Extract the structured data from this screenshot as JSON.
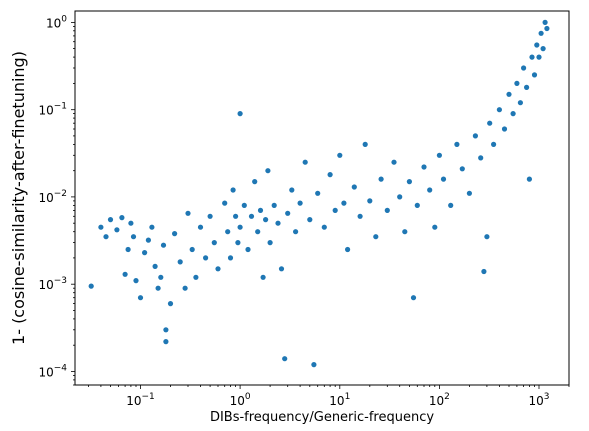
{
  "chart_data": {
    "type": "scatter",
    "title": "",
    "xlabel": "DIBs-frequency/Generic-frequency",
    "ylabel": "1- (cosine-similarity-after-finetuning)",
    "x_scale": "log",
    "y_scale": "log",
    "xlim": [
      0.022,
      2000
    ],
    "ylim": [
      7e-05,
      1.35
    ],
    "grid": false,
    "legend": "none",
    "marker_color": "#1f77b4",
    "x_ticks": [
      {
        "value": 0.1,
        "label": "10",
        "exp": "−1"
      },
      {
        "value": 1,
        "label": "10",
        "exp": "0"
      },
      {
        "value": 10,
        "label": "10",
        "exp": "1"
      },
      {
        "value": 100,
        "label": "10",
        "exp": "2"
      },
      {
        "value": 1000,
        "label": "10",
        "exp": "3"
      }
    ],
    "y_ticks": [
      {
        "value": 0.0001,
        "label": "10",
        "exp": "−4"
      },
      {
        "value": 0.001,
        "label": "10",
        "exp": "−3"
      },
      {
        "value": 0.01,
        "label": "10",
        "exp": "−2"
      },
      {
        "value": 0.1,
        "label": "10",
        "exp": "−1"
      },
      {
        "value": 1,
        "label": "10",
        "exp": "0"
      }
    ],
    "series": [
      {
        "values": [
          [
            0.032,
            0.00095
          ],
          [
            0.04,
            0.0045
          ],
          [
            0.045,
            0.0035
          ],
          [
            0.05,
            0.0055
          ],
          [
            0.058,
            0.0042
          ],
          [
            0.065,
            0.0058
          ],
          [
            0.07,
            0.0013
          ],
          [
            0.075,
            0.0025
          ],
          [
            0.08,
            0.005
          ],
          [
            0.085,
            0.0035
          ],
          [
            0.09,
            0.0011
          ],
          [
            0.1,
            0.0007
          ],
          [
            0.11,
            0.0023
          ],
          [
            0.12,
            0.0032
          ],
          [
            0.13,
            0.0045
          ],
          [
            0.14,
            0.0016
          ],
          [
            0.15,
            0.0009
          ],
          [
            0.16,
            0.0012
          ],
          [
            0.17,
            0.0028
          ],
          [
            0.18,
            0.00022
          ],
          [
            0.18,
            0.0003
          ],
          [
            0.2,
            0.0006
          ],
          [
            0.22,
            0.0038
          ],
          [
            0.25,
            0.0018
          ],
          [
            0.28,
            0.0009
          ],
          [
            0.3,
            0.0065
          ],
          [
            0.33,
            0.0025
          ],
          [
            0.36,
            0.0012
          ],
          [
            0.4,
            0.0045
          ],
          [
            0.45,
            0.002
          ],
          [
            0.5,
            0.006
          ],
          [
            0.55,
            0.003
          ],
          [
            0.6,
            0.0015
          ],
          [
            0.7,
            0.0085
          ],
          [
            0.75,
            0.004
          ],
          [
            0.8,
            0.002
          ],
          [
            0.85,
            0.012
          ],
          [
            0.9,
            0.006
          ],
          [
            0.95,
            0.003
          ],
          [
            1.0,
            0.09
          ],
          [
            1.0,
            0.0045
          ],
          [
            1.1,
            0.008
          ],
          [
            1.2,
            0.0025
          ],
          [
            1.3,
            0.006
          ],
          [
            1.4,
            0.015
          ],
          [
            1.5,
            0.004
          ],
          [
            1.6,
            0.007
          ],
          [
            1.7,
            0.0012
          ],
          [
            1.8,
            0.0055
          ],
          [
            1.9,
            0.02
          ],
          [
            2.0,
            0.003
          ],
          [
            2.2,
            0.008
          ],
          [
            2.4,
            0.005
          ],
          [
            2.6,
            0.0015
          ],
          [
            2.8,
            0.00014
          ],
          [
            3.0,
            0.0065
          ],
          [
            3.3,
            0.012
          ],
          [
            3.6,
            0.004
          ],
          [
            4.0,
            0.0085
          ],
          [
            4.5,
            0.025
          ],
          [
            5.0,
            0.0055
          ],
          [
            5.5,
            0.00012
          ],
          [
            6.0,
            0.011
          ],
          [
            7.0,
            0.0045
          ],
          [
            8.0,
            0.018
          ],
          [
            9.0,
            0.007
          ],
          [
            10,
            0.03
          ],
          [
            11,
            0.0085
          ],
          [
            12,
            0.0025
          ],
          [
            14,
            0.013
          ],
          [
            16,
            0.006
          ],
          [
            18,
            0.04
          ],
          [
            20,
            0.009
          ],
          [
            23,
            0.0035
          ],
          [
            26,
            0.016
          ],
          [
            30,
            0.007
          ],
          [
            35,
            0.025
          ],
          [
            40,
            0.01
          ],
          [
            45,
            0.004
          ],
          [
            50,
            0.015
          ],
          [
            55,
            0.0007
          ],
          [
            60,
            0.008
          ],
          [
            70,
            0.022
          ],
          [
            80,
            0.012
          ],
          [
            90,
            0.0045
          ],
          [
            100,
            0.03
          ],
          [
            110,
            0.016
          ],
          [
            130,
            0.008
          ],
          [
            150,
            0.04
          ],
          [
            170,
            0.021
          ],
          [
            200,
            0.011
          ],
          [
            230,
            0.05
          ],
          [
            260,
            0.028
          ],
          [
            280,
            0.0014
          ],
          [
            300,
            0.0035
          ],
          [
            320,
            0.07
          ],
          [
            350,
            0.04
          ],
          [
            400,
            0.1
          ],
          [
            450,
            0.06
          ],
          [
            500,
            0.15
          ],
          [
            550,
            0.09
          ],
          [
            600,
            0.2
          ],
          [
            650,
            0.12
          ],
          [
            700,
            0.3
          ],
          [
            750,
            0.18
          ],
          [
            800,
            0.016
          ],
          [
            850,
            0.4
          ],
          [
            900,
            0.25
          ],
          [
            950,
            0.55
          ],
          [
            1000,
            0.4
          ],
          [
            1050,
            0.75
          ],
          [
            1100,
            0.5
          ],
          [
            1150,
            1.0
          ],
          [
            1200,
            0.85
          ]
        ]
      }
    ]
  }
}
